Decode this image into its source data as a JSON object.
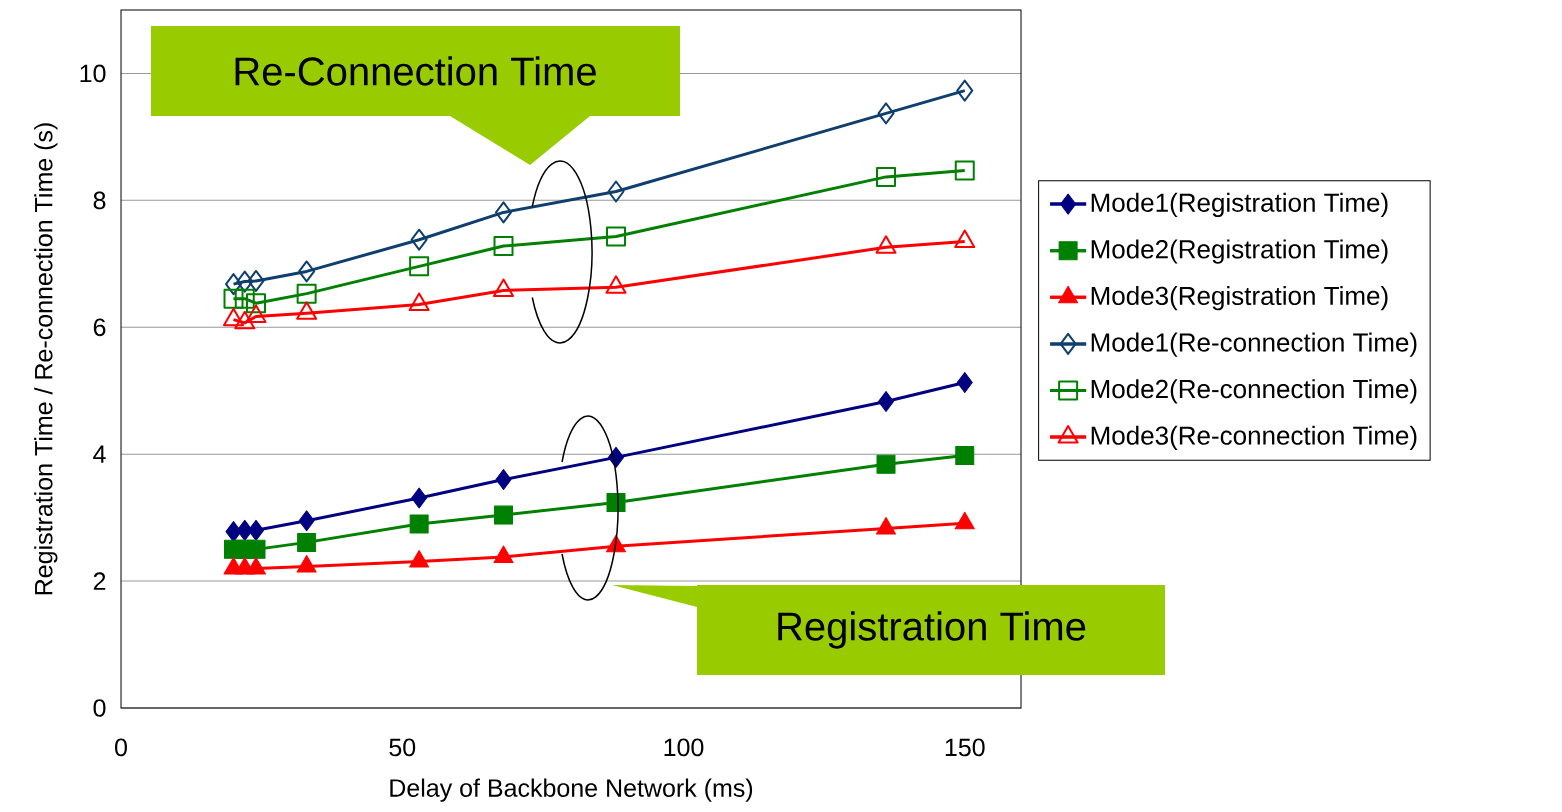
{
  "chart_data": {
    "type": "line",
    "xlabel": "Delay of Backbone Network (ms)",
    "ylabel": "Registration Time / Re-connection Time (s)",
    "xlim": [
      0,
      160
    ],
    "ylim": [
      0,
      11
    ],
    "xticks": [
      0,
      50,
      100,
      150
    ],
    "yticks": [
      0,
      2,
      4,
      6,
      8,
      10
    ],
    "grid": "y",
    "legend": "right",
    "line_style": "solid",
    "x": [
      20,
      22,
      24,
      33,
      53,
      68,
      88,
      136,
      150
    ],
    "series": [
      {
        "name": "Mode1(Registration Time)",
        "color": "#000080",
        "marker": "diamond",
        "values": [
          2.78,
          2.8,
          2.8,
          2.95,
          3.31,
          3.6,
          3.95,
          4.83,
          5.13
        ]
      },
      {
        "name": "Mode2(Registration Time)",
        "color": "#008000",
        "marker": "square",
        "values": [
          2.5,
          2.5,
          2.5,
          2.61,
          2.9,
          3.04,
          3.24,
          3.84,
          3.98
        ]
      },
      {
        "name": "Mode3(Registration Time)",
        "color": "#ff0000",
        "marker": "triangle",
        "values": [
          2.2,
          2.2,
          2.2,
          2.23,
          2.31,
          2.38,
          2.55,
          2.83,
          2.91
        ]
      },
      {
        "name": "Mode1(Re-connection Time)",
        "color": "#0f3f6f",
        "marker": "diamond",
        "values": [
          6.68,
          6.72,
          6.73,
          6.88,
          7.38,
          7.81,
          8.14,
          9.37,
          9.73
        ]
      },
      {
        "name": "Mode2(Re-connection Time)",
        "color": "#008000",
        "marker": "square",
        "values": [
          6.45,
          6.45,
          6.38,
          6.53,
          6.96,
          7.28,
          7.43,
          8.37,
          8.47
        ]
      },
      {
        "name": "Mode3(Re-connection Time)",
        "color": "#ff0000",
        "marker": "triangle",
        "values": [
          6.12,
          6.07,
          6.17,
          6.22,
          6.36,
          6.58,
          6.63,
          7.26,
          7.35
        ]
      }
    ],
    "annotations": [
      "Re-Connection Time",
      "Registration Time"
    ]
  }
}
